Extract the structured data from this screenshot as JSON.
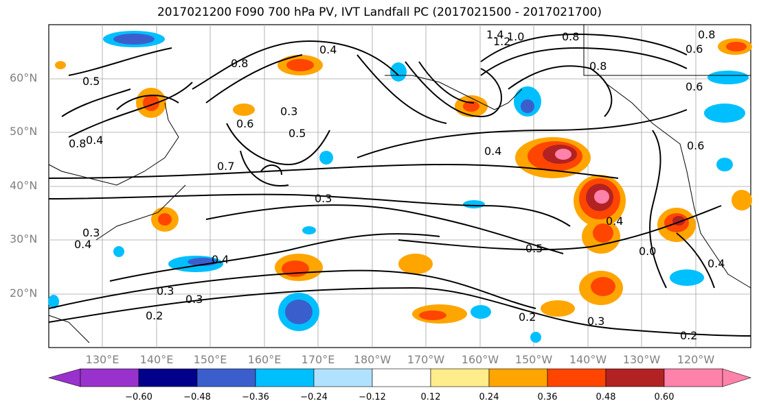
{
  "title": "2017021200 F090 700 hPa PV, IVT Landfall PC (2017021500 - 2017021700)",
  "lat_labels": [
    "60°N",
    "50°N",
    "40°N",
    "30°N",
    "20°N"
  ],
  "lon_labels": [
    "130°E",
    "140°E",
    "150°E",
    "160°E",
    "170°E",
    "180°W",
    "170°W",
    "160°W",
    "150°W",
    "140°W",
    "130°W",
    "120°W"
  ],
  "contour_labels": [
    "1.4",
    "1.2",
    "1.0",
    "0.8",
    "0.8",
    "0.6",
    "0.8",
    "0.6",
    "0.8",
    "0.5",
    "0.4",
    "0.8",
    "0.3",
    "0.5",
    "0.6",
    "0.7",
    "0.4",
    "0.4",
    "0.6",
    "0.3",
    "0.4",
    "0.5",
    "0.4",
    "0.3",
    "0.3",
    "0.3",
    "0.2",
    "0.2",
    "0.3",
    "0.2",
    "0.4",
    "0.0",
    "0.4"
  ],
  "colorbar": {
    "ticks": [
      "−0.60",
      "−0.48",
      "−0.36",
      "−0.24",
      "−0.12",
      "0.12",
      "0.24",
      "0.36",
      "0.48",
      "0.60"
    ],
    "colors": [
      "#9932cc",
      "#00008b",
      "#3a5fcd",
      "#00bfff",
      "#b0e2ff",
      "#ffffff",
      "#ffec8b",
      "#ffa500",
      "#ff4500",
      "#b22222",
      "#ff82ab"
    ]
  },
  "colors": {
    "land_outline": "#000000",
    "grid": "#a0a0a0"
  }
}
